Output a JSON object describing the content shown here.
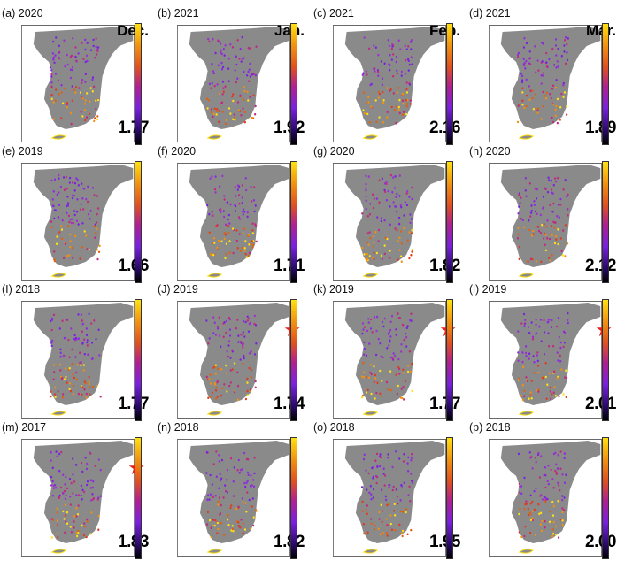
{
  "chart_data": [
    {
      "type": "scatter",
      "title": "(a) 2020",
      "month": "Dec.",
      "value": "1.77",
      "star": false
    },
    {
      "type": "scatter",
      "title": "(b) 2021",
      "month": "Jan.",
      "value": "1.92",
      "star": false
    },
    {
      "type": "scatter",
      "title": "(c) 2021",
      "month": "Feb.",
      "value": "2.16",
      "star": false
    },
    {
      "type": "scatter",
      "title": "(d) 2021",
      "month": "Mar.",
      "value": "1.89",
      "star": false
    },
    {
      "type": "scatter",
      "title": "(e) 2019",
      "month": "",
      "value": "1.66",
      "star": false
    },
    {
      "type": "scatter",
      "title": "(f) 2020",
      "month": "",
      "value": "1.71",
      "star": false
    },
    {
      "type": "scatter",
      "title": "(g) 2020",
      "month": "",
      "value": "1.82",
      "star": false
    },
    {
      "type": "scatter",
      "title": "(h) 2020",
      "month": "",
      "value": "2.12",
      "star": false
    },
    {
      "type": "scatter",
      "title": "(I) 2018",
      "month": "",
      "value": "1.77",
      "star": false
    },
    {
      "type": "scatter",
      "title": "(J) 2019",
      "month": "",
      "value": "1.74",
      "star": true
    },
    {
      "type": "scatter",
      "title": "(k) 2019",
      "month": "",
      "value": "1.77",
      "star": true
    },
    {
      "type": "scatter",
      "title": "(l) 2019",
      "month": "",
      "value": "2.01",
      "star": true
    },
    {
      "type": "scatter",
      "title": "(m) 2017",
      "month": "",
      "value": "1.83",
      "star": true
    },
    {
      "type": "scatter",
      "title": "(n) 2018",
      "month": "",
      "value": "1.82",
      "star": false
    },
    {
      "type": "scatter",
      "title": "(o) 2018",
      "month": "",
      "value": "1.95",
      "star": false
    },
    {
      "type": "scatter",
      "title": "(p) 2018",
      "month": "",
      "value": "2.00",
      "star": false
    }
  ],
  "colorbar": {
    "colors": [
      "#000000",
      "#2a0a6a",
      "#7a20e0",
      "#b02090",
      "#e05020",
      "#f08a10",
      "#ffe010"
    ]
  },
  "colors": {
    "land": "#8a8a8a",
    "star": "#e0241d"
  }
}
